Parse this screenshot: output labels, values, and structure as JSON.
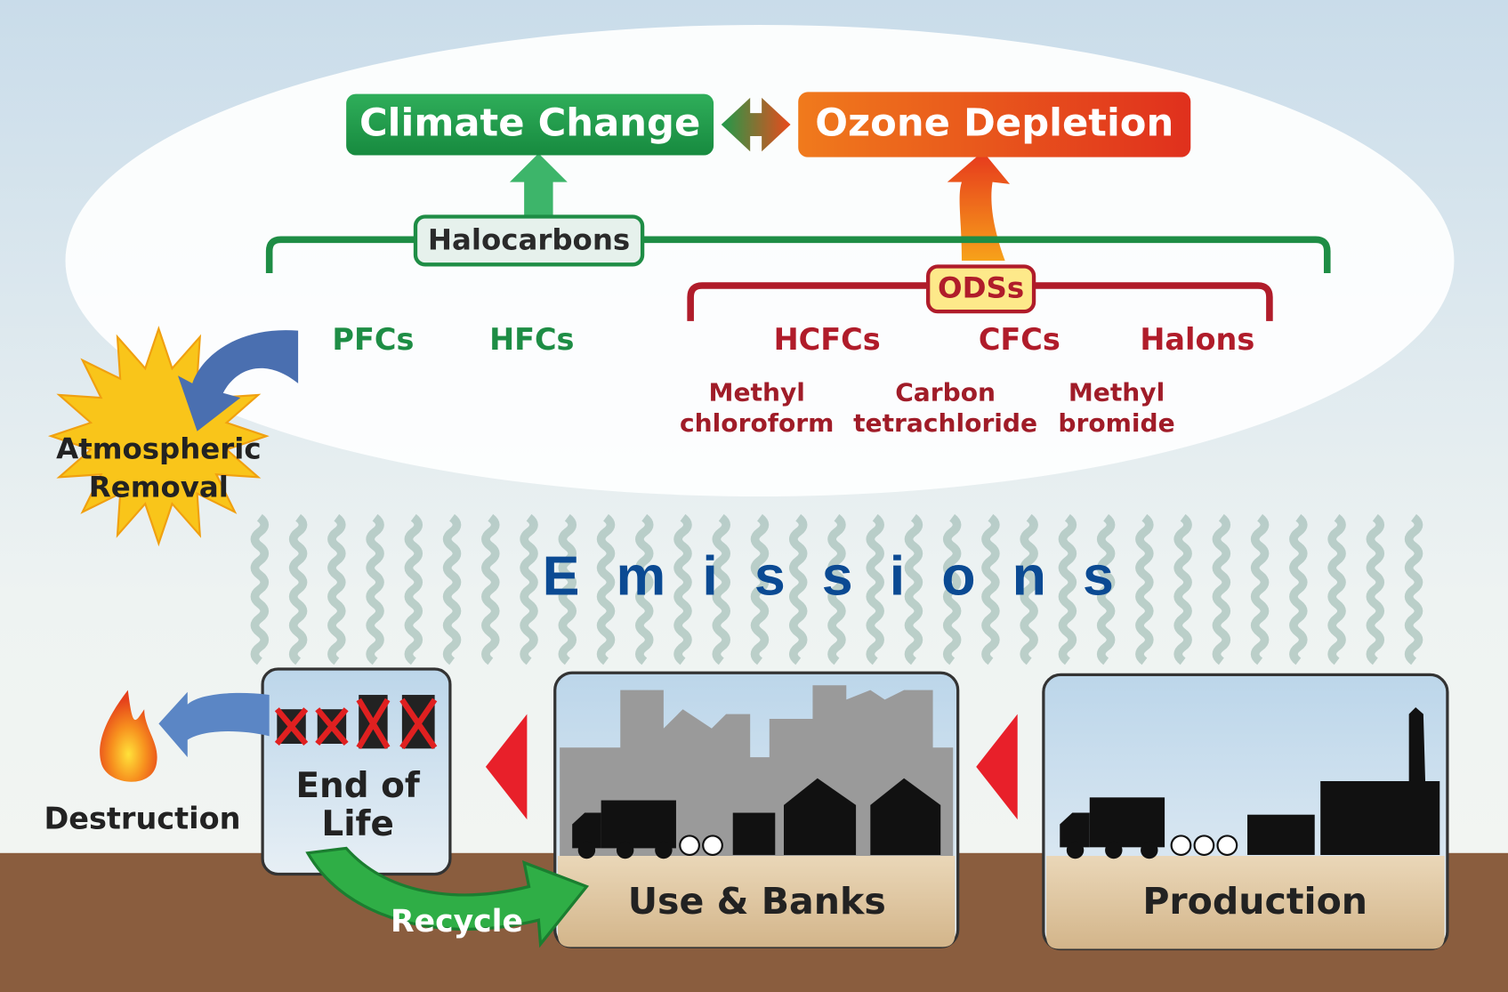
{
  "effects": {
    "climate_change": "Climate Change",
    "ozone_depletion": "Ozone Depletion"
  },
  "groups": {
    "halocarbons": "Halocarbons",
    "odss": "ODSs"
  },
  "gases": [
    "PFCs",
    "HFCs",
    "HCFCs",
    "CFCs",
    "Halons"
  ],
  "minor_gases": [
    {
      "lines": [
        "Methyl",
        "chloroform"
      ]
    },
    {
      "lines": [
        "Carbon",
        "tetrachloride"
      ]
    },
    {
      "lines": [
        "Methyl",
        "bromide"
      ]
    }
  ],
  "atmospheric_removal": [
    "Atmospheric",
    "Removal"
  ],
  "emissions": "Emissions",
  "stages": {
    "end_of_life": [
      "End of",
      "Life"
    ],
    "use_banks": "Use & Banks",
    "production": "Production"
  },
  "recycle": "Recycle",
  "destruction": "Destruction"
}
